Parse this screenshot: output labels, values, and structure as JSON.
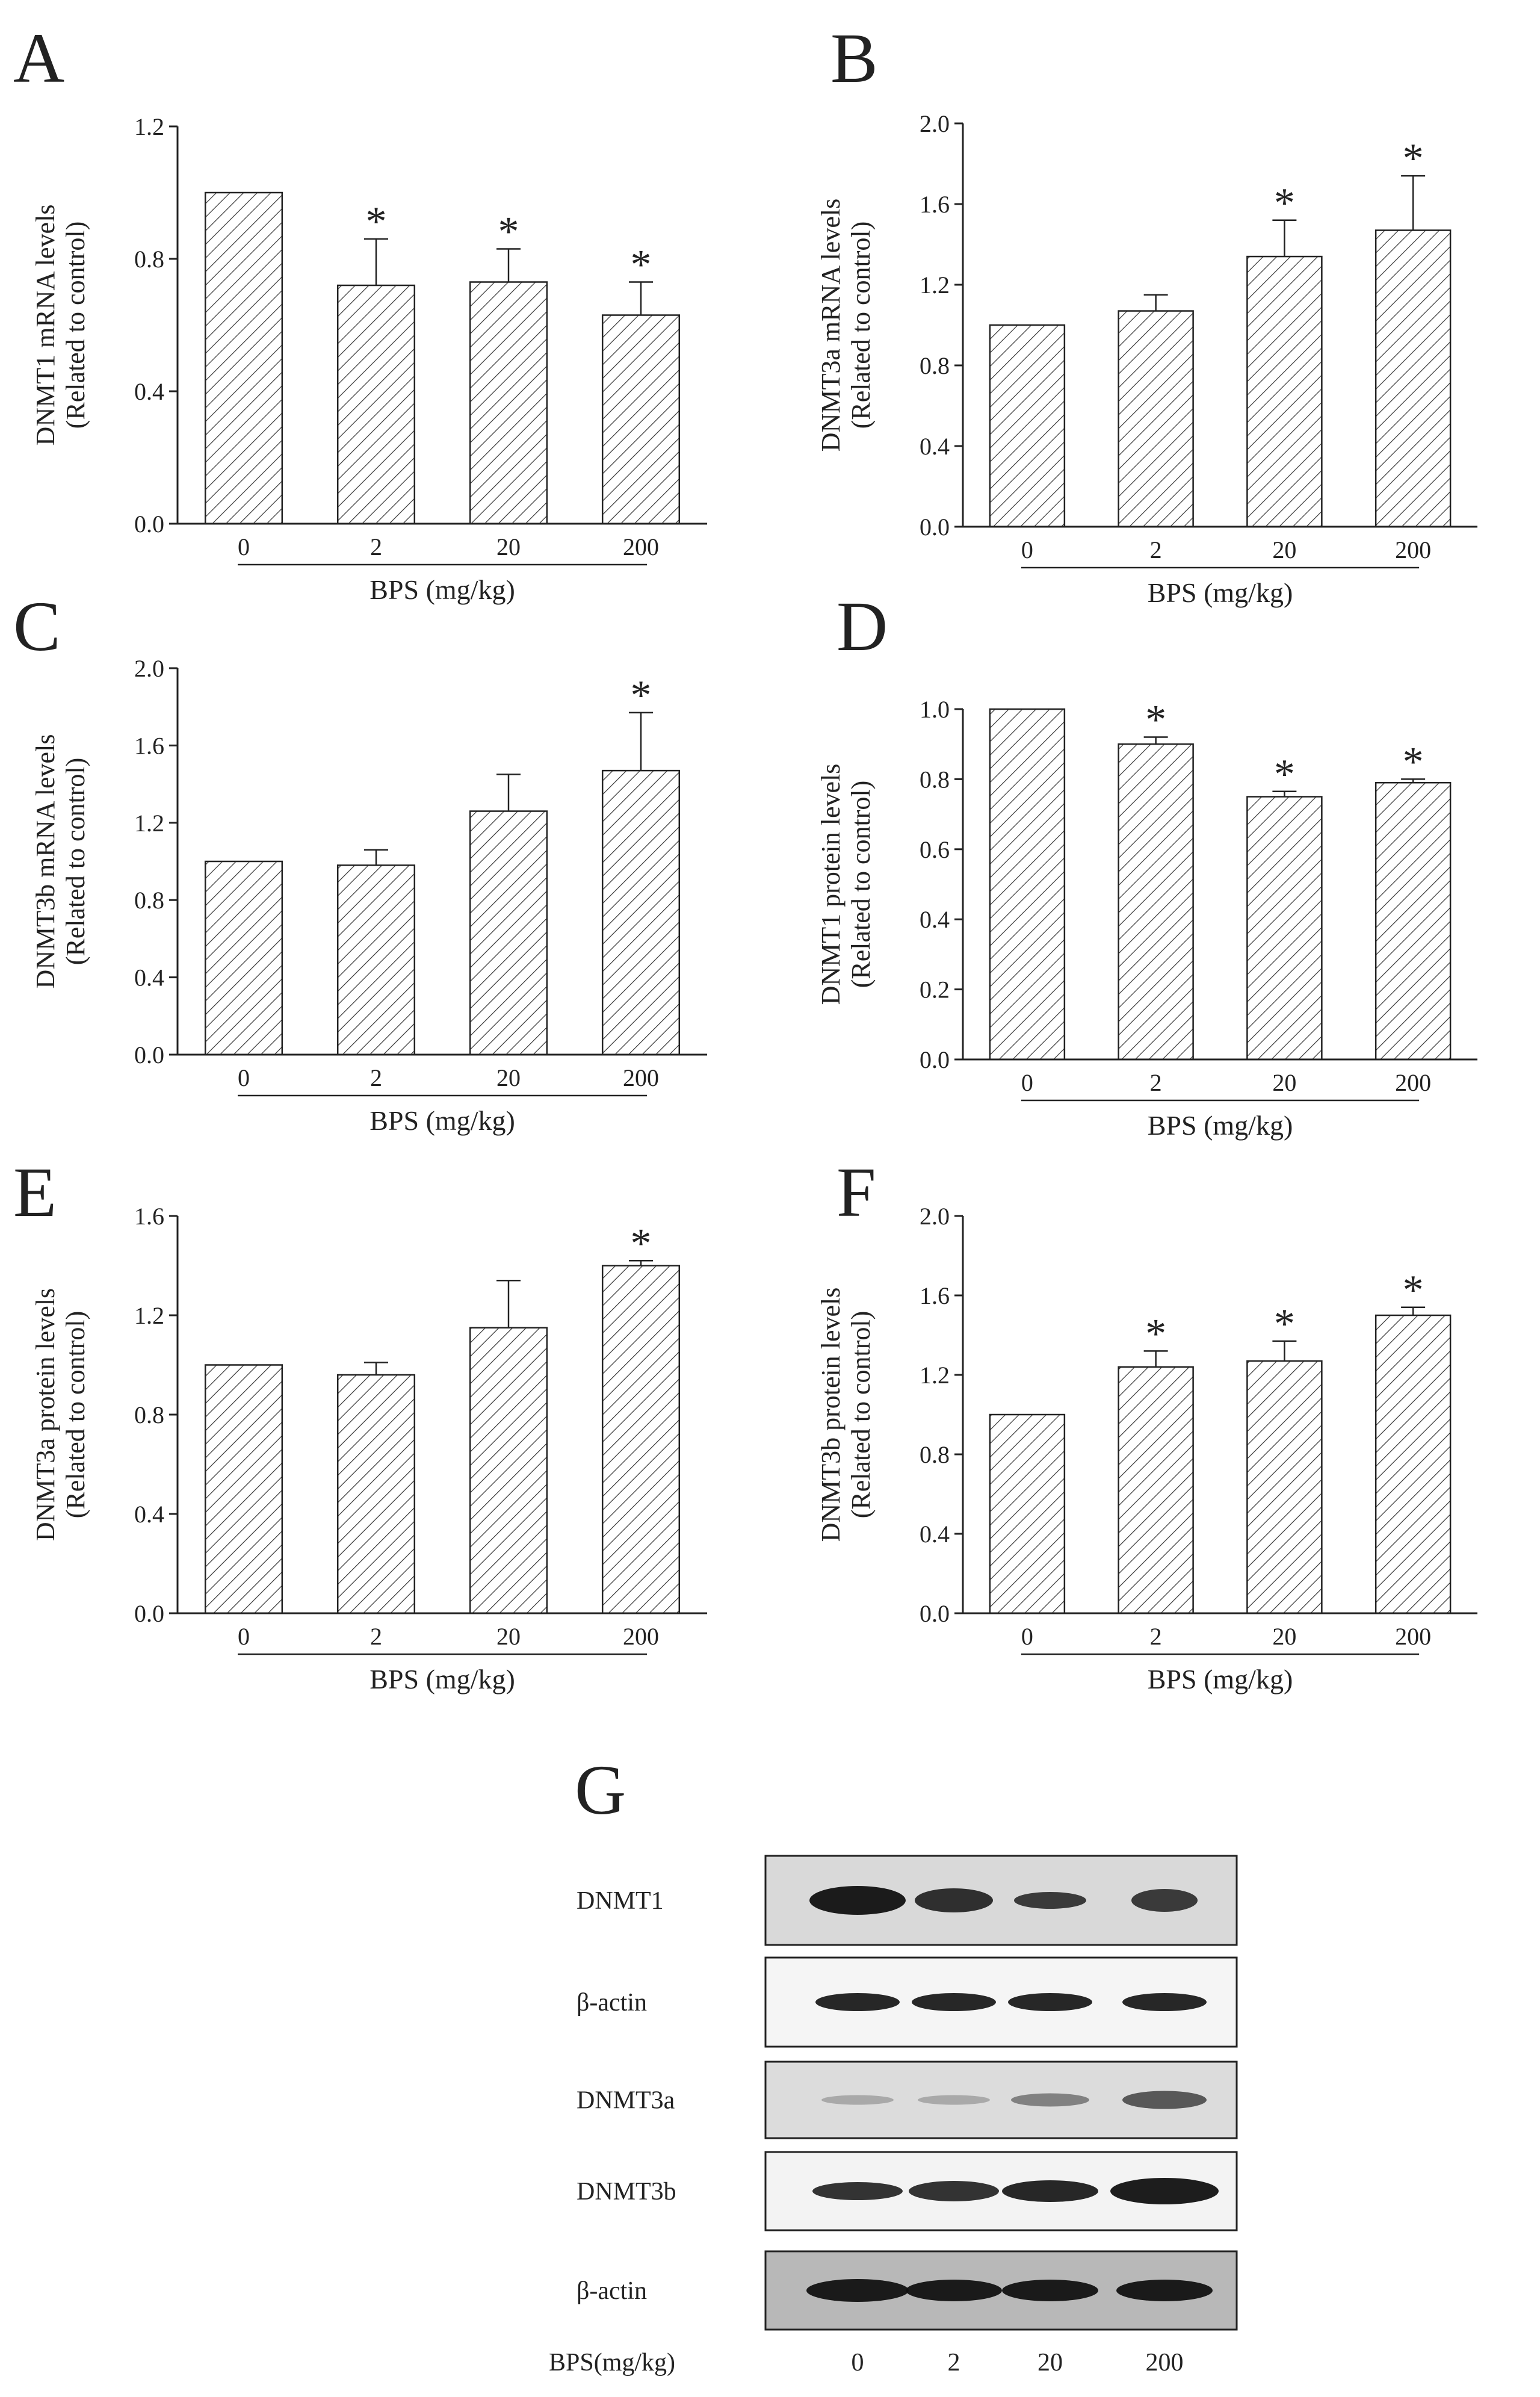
{
  "chart_data": [
    {
      "panel": "A",
      "type": "bar",
      "categories": [
        "0",
        "2",
        "20",
        "200"
      ],
      "values": [
        1.0,
        0.72,
        0.73,
        0.63
      ],
      "errors": [
        0,
        0.14,
        0.1,
        0.1
      ],
      "significant": [
        false,
        true,
        true,
        true
      ],
      "ylabel_line1": "DNMT1 mRNA levels",
      "ylabel_line2": "(Related to control)",
      "xlabel": "BPS (mg/kg)",
      "ylim": [
        0,
        1.2
      ],
      "yticks": [
        "0.0",
        "0.4",
        "0.8",
        "1.2"
      ]
    },
    {
      "panel": "B",
      "type": "bar",
      "categories": [
        "0",
        "2",
        "20",
        "200"
      ],
      "values": [
        1.0,
        1.07,
        1.34,
        1.47
      ],
      "errors": [
        0,
        0.08,
        0.18,
        0.27
      ],
      "significant": [
        false,
        false,
        true,
        true
      ],
      "ylabel_line1": "DNMT3a mRNA levels",
      "ylabel_line2": "(Related to control)",
      "xlabel": "BPS (mg/kg)",
      "ylim": [
        0,
        2.0
      ],
      "yticks": [
        "0.0",
        "0.4",
        "0.8",
        "1.2",
        "1.6",
        "2.0"
      ]
    },
    {
      "panel": "C",
      "type": "bar",
      "categories": [
        "0",
        "2",
        "20",
        "200"
      ],
      "values": [
        1.0,
        0.98,
        1.26,
        1.47
      ],
      "errors": [
        0,
        0.08,
        0.19,
        0.3
      ],
      "significant": [
        false,
        false,
        false,
        true
      ],
      "ylabel_line1": "DNMT3b mRNA levels",
      "ylabel_line2": "(Related to control)",
      "xlabel": "BPS (mg/kg)",
      "ylim": [
        0,
        2.0
      ],
      "yticks": [
        "0.0",
        "0.4",
        "0.8",
        "1.2",
        "1.6",
        "2.0"
      ]
    },
    {
      "panel": "D",
      "type": "bar",
      "categories": [
        "0",
        "2",
        "20",
        "200"
      ],
      "values": [
        1.0,
        0.9,
        0.75,
        0.79
      ],
      "errors": [
        0,
        0.02,
        0.015,
        0.01
      ],
      "significant": [
        false,
        true,
        true,
        true
      ],
      "ylabel_line1": "DNMT1 protein levels",
      "ylabel_line2": "(Related  to control)",
      "xlabel": "BPS (mg/kg)",
      "ylim": [
        0,
        1.0
      ],
      "yticks": [
        "0.0",
        "0.2",
        "0.4",
        "0.6",
        "0.8",
        "1.0"
      ]
    },
    {
      "panel": "E",
      "type": "bar",
      "categories": [
        "0",
        "2",
        "20",
        "200"
      ],
      "values": [
        1.0,
        0.96,
        1.15,
        1.4
      ],
      "errors": [
        0,
        0.05,
        0.19,
        0.02
      ],
      "significant": [
        false,
        false,
        false,
        true
      ],
      "ylabel_line1": "DNMT3a protein levels",
      "ylabel_line2": "(Related to control)",
      "xlabel": "BPS (mg/kg)",
      "ylim": [
        0,
        1.6
      ],
      "yticks": [
        "0.0",
        "0.4",
        "0.8",
        "1.2",
        "1.6"
      ]
    },
    {
      "panel": "F",
      "type": "bar",
      "categories": [
        "0",
        "2",
        "20",
        "200"
      ],
      "values": [
        1.0,
        1.24,
        1.27,
        1.5
      ],
      "errors": [
        0,
        0.08,
        0.1,
        0.04
      ],
      "significant": [
        false,
        true,
        true,
        true
      ],
      "ylabel_line1": "DNMT3b protein levels",
      "ylabel_line2": "(Related to control)",
      "xlabel": "BPS (mg/kg)",
      "ylim": [
        0,
        2.0
      ],
      "yticks": [
        "0.0",
        "0.4",
        "0.8",
        "1.2",
        "1.6",
        "2.0"
      ]
    }
  ],
  "blot": {
    "panel": "G",
    "row_labels": [
      "DNMT1",
      "β-actin",
      "DNMT3a",
      "DNMT3b",
      "β-actin"
    ],
    "axis_label": "BPS(mg/kg)",
    "lanes": [
      "0",
      "2",
      "20",
      "200"
    ]
  },
  "significance_mark": "*"
}
